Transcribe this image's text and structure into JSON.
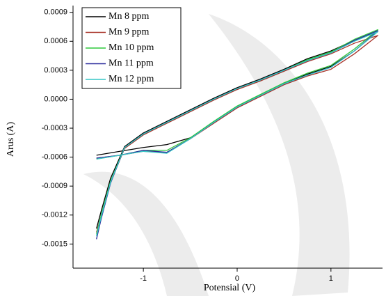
{
  "chart_data": {
    "type": "line",
    "x_label": "Potensial (V)",
    "y_label": "Arus (A)",
    "x": [
      -1.5,
      -1.25,
      -1,
      -0.75,
      -0.5,
      -0.25,
      0,
      0.25,
      0.5,
      0.75,
      1,
      1.25,
      1.5,
      1.25,
      1,
      0.75,
      0.5,
      0.25,
      0,
      -0.25,
      -0.5,
      -0.75,
      -1,
      -1.2,
      -1.35,
      -1.45,
      -1.5
    ],
    "series": [
      {
        "name": "Mn 8 ppm",
        "color": "#000000",
        "values": [
          -0.00058,
          -0.00054,
          -0.0005,
          -0.00047,
          -0.0004,
          -0.00024,
          -8e-05,
          4e-05,
          0.00016,
          0.00026,
          0.00034,
          0.0005,
          0.0007,
          0.00061,
          0.0005,
          0.00042,
          0.00031,
          0.00021,
          0.00012,
          1e-05,
          -0.00011,
          -0.00023,
          -0.00035,
          -0.00049,
          -0.00082,
          -0.00116,
          -0.00134
        ]
      },
      {
        "name": "Mn 9 ppm",
        "color": "#a83228",
        "values": [
          -0.00061,
          -0.00058,
          -0.00054,
          -0.00055,
          -0.00041,
          -0.00025,
          -9e-05,
          3e-05,
          0.00015,
          0.00024,
          0.00031,
          0.00047,
          0.00066,
          0.00058,
          0.00047,
          0.00039,
          0.00029,
          0.00019,
          0.0001,
          -1e-05,
          -0.00013,
          -0.00025,
          -0.00037,
          -0.00051,
          -0.00086,
          -0.00121,
          -0.00138
        ]
      },
      {
        "name": "Mn 10 ppm",
        "color": "#2ec83c",
        "values": [
          -0.00062,
          -0.00058,
          -0.00053,
          -0.00053,
          -0.0004,
          -0.00023,
          -7e-05,
          5e-05,
          0.00017,
          0.00027,
          0.00035,
          0.00052,
          0.00072,
          0.00062,
          0.00049,
          0.00041,
          0.0003,
          0.0002,
          0.00011,
          0.0,
          -0.00012,
          -0.00024,
          -0.00036,
          -0.0005,
          -0.00085,
          -0.0012,
          -0.0014
        ]
      },
      {
        "name": "Mn 11 ppm",
        "color": "#2a2a9c",
        "values": [
          -0.00061,
          -0.00058,
          -0.00053,
          -0.00055,
          -0.00041,
          -0.00024,
          -8e-05,
          4e-05,
          0.00016,
          0.00025,
          0.00033,
          0.0005,
          0.00071,
          0.00061,
          0.00048,
          0.0004,
          0.0003,
          0.0002,
          0.00011,
          0.0,
          -0.00012,
          -0.00024,
          -0.00036,
          -0.0005,
          -0.00087,
          -0.00124,
          -0.00145
        ]
      },
      {
        "name": "Mn 12 ppm",
        "color": "#35c6c6",
        "values": [
          -0.00062,
          -0.00058,
          -0.00054,
          -0.00056,
          -0.00041,
          -0.00024,
          -8e-05,
          4e-05,
          0.00016,
          0.00025,
          0.00033,
          0.0005,
          0.0007,
          0.0006,
          0.00048,
          0.0004,
          0.0003,
          0.0002,
          0.00011,
          0.0,
          -0.00012,
          -0.00024,
          -0.00036,
          -0.0005,
          -0.00086,
          -0.00122,
          -0.00142
        ]
      }
    ],
    "xlim": [
      -1.75,
      1.55
    ],
    "ylim": [
      -0.00175,
      0.00097
    ],
    "xticks": [
      -1,
      0,
      1
    ],
    "yticks": [
      0.0009,
      0.0006,
      0.0003,
      {
        "value": 0,
        "label": "0.0000"
      },
      -0.0003,
      -0.0006,
      -0.0009,
      -0.0012,
      -0.0015
    ],
    "legend": "upper left"
  }
}
